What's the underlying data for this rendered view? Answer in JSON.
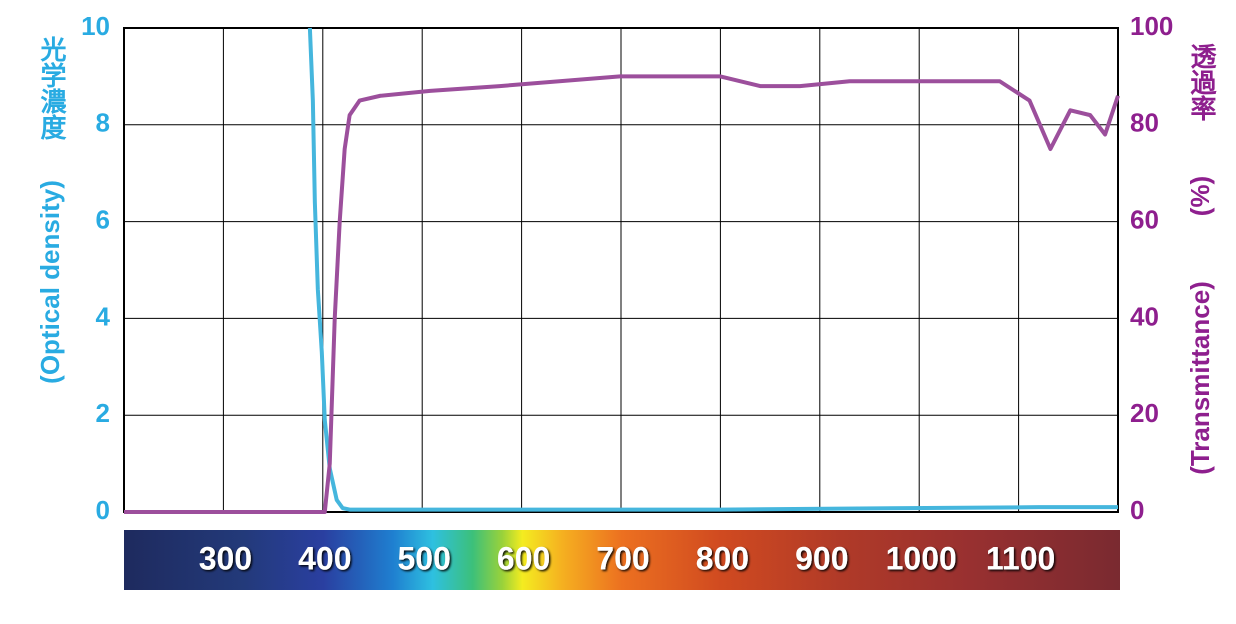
{
  "chart_data": {
    "type": "line",
    "y_label": "(Optical density)",
    "y_label_jp": "光学濃度",
    "y2_label": "(Transmittance)",
    "y2_unit": "(%)",
    "y2_label_jp": "透過率",
    "xlim": [
      200,
      1200
    ],
    "xticks": [
      300,
      400,
      500,
      600,
      700,
      800,
      900,
      1000,
      1100
    ],
    "ylim": [
      0,
      10
    ],
    "yticks": [
      0,
      2,
      4,
      6,
      8,
      10
    ],
    "y2lim": [
      0,
      100
    ],
    "y2ticks": [
      0,
      20,
      40,
      60,
      80,
      100
    ],
    "grid": true,
    "series": [
      {
        "color": "#45b6dd",
        "axis": "y",
        "x": [
          387,
          390,
          392,
          395,
          399,
          402,
          407,
          414,
          420,
          427,
          600,
          800,
          1120,
          1200
        ],
        "values": [
          10,
          8.5,
          6.4,
          4.6,
          3.3,
          1.9,
          0.9,
          0.25,
          0.08,
          0.05,
          0.05,
          0.05,
          0.1,
          0.1
        ]
      },
      {
        "color": "#9c4f9c",
        "axis": "y2",
        "x": [
          200,
          402,
          407,
          412,
          417,
          422,
          427,
          437,
          458,
          508,
          578,
          699,
          800,
          840,
          880,
          930,
          1081,
          1111,
          1132,
          1152,
          1172,
          1187,
          1200
        ],
        "values": [
          0,
          0,
          10,
          40,
          60,
          75,
          82,
          85,
          86,
          87,
          88,
          90,
          90,
          88,
          88,
          89,
          89,
          85,
          75,
          83,
          82,
          78,
          86
        ]
      }
    ]
  }
}
